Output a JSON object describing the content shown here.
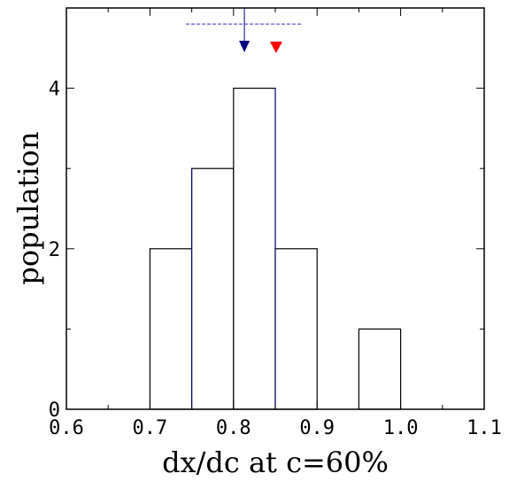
{
  "chart_data": {
    "type": "bar",
    "xlabel": "dx/dc at c=60%",
    "ylabel": "population",
    "xlim": [
      0.6,
      1.1
    ],
    "ylim": [
      0,
      5
    ],
    "x_ticks": [
      "0.6",
      "0.7",
      "0.8",
      "0.9",
      "1.0",
      "1.1"
    ],
    "y_ticks": [
      "0",
      "2",
      "4"
    ],
    "bins": [
      {
        "from": 0.7,
        "to": 0.75,
        "value": 2
      },
      {
        "from": 0.75,
        "to": 0.8,
        "value": 3
      },
      {
        "from": 0.8,
        "to": 0.85,
        "value": 4
      },
      {
        "from": 0.85,
        "to": 0.9,
        "value": 2
      },
      {
        "from": 0.95,
        "to": 1.0,
        "value": 1
      }
    ],
    "markers": [
      {
        "name": "mean",
        "x": 0.813,
        "color": "#000080",
        "range": [
          0.743,
          0.883
        ],
        "range_y": 4.8
      },
      {
        "name": "reference",
        "x": 0.851,
        "color": "#ff0000"
      }
    ],
    "colors": {
      "bar_edge": "#000000",
      "bar_fill": "#ffffff",
      "mean": "#000080",
      "reference": "#ff0000",
      "range": "#3333cc"
    },
    "grid": false
  }
}
